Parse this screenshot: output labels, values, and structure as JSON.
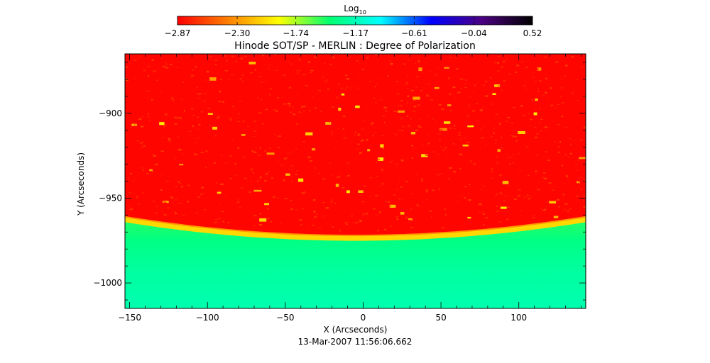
{
  "chart_data": {
    "type": "heatmap",
    "title": "Hinode SOT/SP - MERLIN : Degree of Polarization",
    "subtitle": "13-Mar-2007 11:56:06.662",
    "xlabel": "X (Arcseconds)",
    "ylabel": "Y (Arcseconds)",
    "xlim": [
      -153,
      143
    ],
    "ylim": [
      -1015,
      -865
    ],
    "x_ticks": [
      -150,
      -100,
      -50,
      0,
      50,
      100
    ],
    "x_tick_labels": [
      "−150",
      "−100",
      "−50",
      "0",
      "50",
      "100"
    ],
    "y_ticks": [
      -900,
      -950,
      -1000
    ],
    "y_tick_labels": [
      "−900",
      "−950",
      "−1000"
    ],
    "colorbar": {
      "label_base": "Log",
      "label_sub": "10",
      "range": [
        -2.87,
        0.52
      ],
      "ticks": [
        -2.87,
        -2.3,
        -1.74,
        -1.17,
        -0.61,
        -0.04,
        0.52
      ],
      "tick_labels": [
        "−2.87",
        "−2.30",
        "−1.74",
        "−1.17",
        "−0.61",
        "−0.04",
        "0.52"
      ],
      "colors": [
        "#ff0000",
        "#ff8000",
        "#ffff00",
        "#00ff70",
        "#00ffff",
        "#0000ff",
        "#4b0080",
        "#000000"
      ]
    },
    "limb": {
      "y_at_edges": -961,
      "y_at_center": -972,
      "center_x": -5
    },
    "disk_value": -2.85,
    "offdisk_value": -1.25
  }
}
